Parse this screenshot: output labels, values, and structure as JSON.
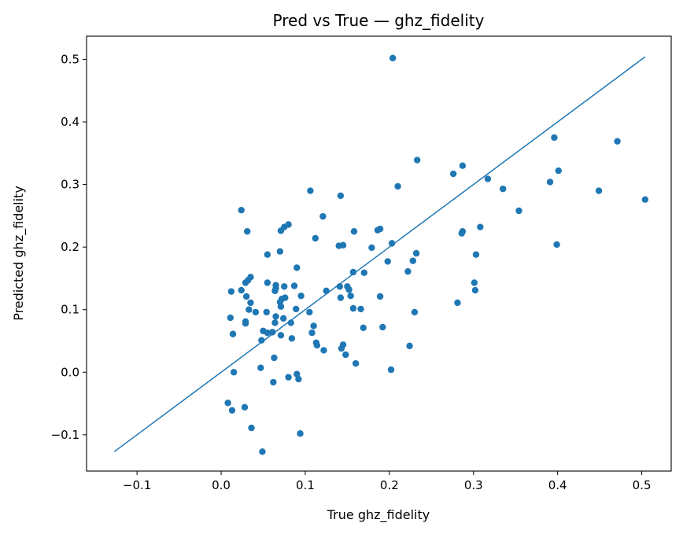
{
  "chart_data": {
    "type": "scatter",
    "title": "Pred vs True — ghz_fidelity",
    "xlabel": "True ghz_fidelity",
    "ylabel": "Predicted ghz_fidelity",
    "xlim": [
      -0.16,
      0.535
    ],
    "ylim": [
      -0.158,
      0.537
    ],
    "xticks": [
      -0.1,
      0.0,
      0.1,
      0.2,
      0.3,
      0.4,
      0.5
    ],
    "xtick_labels": [
      "−0.1",
      "0.0",
      "0.1",
      "0.2",
      "0.3",
      "0.4",
      "0.5"
    ],
    "yticks": [
      -0.1,
      0.0,
      0.1,
      0.2,
      0.3,
      0.4,
      0.5
    ],
    "ytick_labels": [
      "−0.1",
      "0.0",
      "0.1",
      "0.2",
      "0.3",
      "0.4",
      "0.5"
    ],
    "grid": false,
    "colors": {
      "points": "#1f77b4",
      "reference_line": "#1f77b4",
      "axes": "#000000"
    },
    "reference_line": {
      "x": [
        -0.127,
        0.504
      ],
      "y": [
        -0.127,
        0.504
      ]
    },
    "points": [
      [
        0.204,
        0.502
      ],
      [
        0.396,
        0.375
      ],
      [
        0.471,
        0.369
      ],
      [
        0.233,
        0.339
      ],
      [
        0.287,
        0.33
      ],
      [
        0.276,
        0.317
      ],
      [
        0.317,
        0.309
      ],
      [
        0.391,
        0.304
      ],
      [
        0.401,
        0.322
      ],
      [
        0.335,
        0.293
      ],
      [
        0.449,
        0.29
      ],
      [
        0.504,
        0.276
      ],
      [
        0.354,
        0.258
      ],
      [
        0.21,
        0.297
      ],
      [
        0.106,
        0.29
      ],
      [
        0.142,
        0.282
      ],
      [
        0.121,
        0.249
      ],
      [
        0.024,
        0.259
      ],
      [
        0.031,
        0.225
      ],
      [
        0.075,
        0.232
      ],
      [
        0.071,
        0.226
      ],
      [
        0.08,
        0.236
      ],
      [
        0.112,
        0.214
      ],
      [
        0.158,
        0.225
      ],
      [
        0.186,
        0.227
      ],
      [
        0.189,
        0.229
      ],
      [
        0.287,
        0.225
      ],
      [
        0.286,
        0.222
      ],
      [
        0.308,
        0.232
      ],
      [
        0.399,
        0.204
      ],
      [
        0.14,
        0.202
      ],
      [
        0.145,
        0.203
      ],
      [
        0.179,
        0.199
      ],
      [
        0.203,
        0.206
      ],
      [
        0.232,
        0.19
      ],
      [
        0.303,
        0.188
      ],
      [
        0.055,
        0.188
      ],
      [
        0.07,
        0.193
      ],
      [
        0.198,
        0.177
      ],
      [
        0.228,
        0.178
      ],
      [
        0.09,
        0.167
      ],
      [
        0.222,
        0.161
      ],
      [
        0.157,
        0.16
      ],
      [
        0.17,
        0.159
      ],
      [
        0.301,
        0.143
      ],
      [
        0.035,
        0.152
      ],
      [
        0.032,
        0.147
      ],
      [
        0.029,
        0.143
      ],
      [
        0.055,
        0.143
      ],
      [
        0.065,
        0.139
      ],
      [
        0.075,
        0.137
      ],
      [
        0.065,
        0.134
      ],
      [
        0.064,
        0.13
      ],
      [
        0.087,
        0.138
      ],
      [
        0.141,
        0.137
      ],
      [
        0.15,
        0.137
      ],
      [
        0.152,
        0.132
      ],
      [
        0.125,
        0.13
      ],
      [
        0.024,
        0.131
      ],
      [
        0.012,
        0.129
      ],
      [
        0.302,
        0.131
      ],
      [
        0.03,
        0.121
      ],
      [
        0.076,
        0.119
      ],
      [
        0.072,
        0.117
      ],
      [
        0.07,
        0.112
      ],
      [
        0.095,
        0.122
      ],
      [
        0.142,
        0.119
      ],
      [
        0.154,
        0.122
      ],
      [
        0.189,
        0.121
      ],
      [
        0.281,
        0.111
      ],
      [
        0.035,
        0.111
      ],
      [
        0.071,
        0.105
      ],
      [
        0.089,
        0.101
      ],
      [
        0.033,
        0.1
      ],
      [
        0.041,
        0.096
      ],
      [
        0.054,
        0.096
      ],
      [
        0.105,
        0.096
      ],
      [
        0.157,
        0.102
      ],
      [
        0.166,
        0.101
      ],
      [
        0.23,
        0.096
      ],
      [
        0.011,
        0.087
      ],
      [
        0.065,
        0.089
      ],
      [
        0.074,
        0.086
      ],
      [
        0.029,
        0.081
      ],
      [
        0.029,
        0.078
      ],
      [
        0.064,
        0.079
      ],
      [
        0.083,
        0.079
      ],
      [
        0.11,
        0.074
      ],
      [
        0.169,
        0.071
      ],
      [
        0.192,
        0.072
      ],
      [
        0.05,
        0.066
      ],
      [
        0.055,
        0.063
      ],
      [
        0.061,
        0.064
      ],
      [
        0.014,
        0.061
      ],
      [
        0.071,
        0.059
      ],
      [
        0.108,
        0.063
      ],
      [
        0.084,
        0.054
      ],
      [
        0.048,
        0.051
      ],
      [
        0.113,
        0.047
      ],
      [
        0.114,
        0.043
      ],
      [
        0.145,
        0.044
      ],
      [
        0.143,
        0.038
      ],
      [
        0.122,
        0.035
      ],
      [
        0.148,
        0.028
      ],
      [
        0.224,
        0.042
      ],
      [
        0.063,
        0.023
      ],
      [
        0.16,
        0.014
      ],
      [
        0.047,
        0.007
      ],
      [
        0.202,
        0.004
      ],
      [
        0.015,
        0.0
      ],
      [
        0.09,
        -0.003
      ],
      [
        0.08,
        -0.008
      ],
      [
        0.092,
        -0.011
      ],
      [
        0.062,
        -0.016
      ],
      [
        0.008,
        -0.049
      ],
      [
        0.013,
        -0.061
      ],
      [
        0.028,
        -0.056
      ],
      [
        0.036,
        -0.089
      ],
      [
        0.094,
        -0.098
      ],
      [
        0.049,
        -0.127
      ]
    ]
  }
}
